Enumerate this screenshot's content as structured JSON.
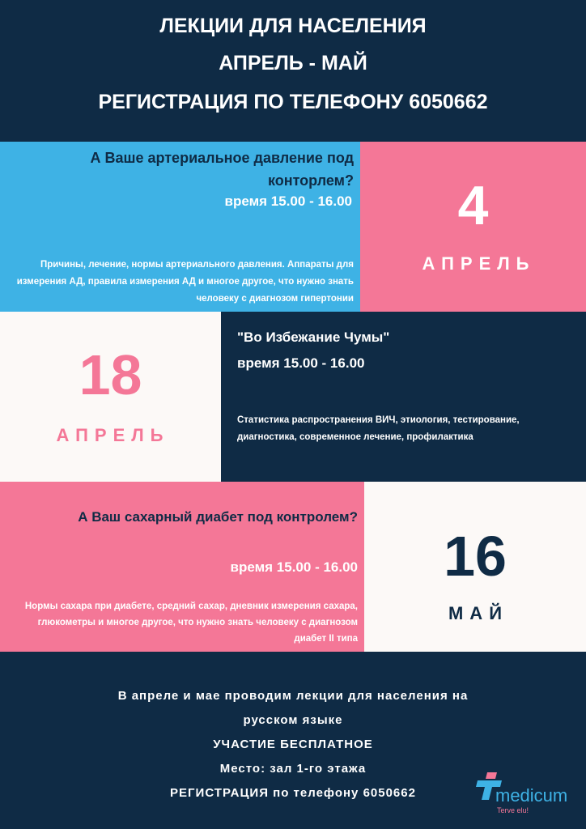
{
  "header": {
    "line1": "ЛЕКЦИИ ДЛЯ НАСЕЛЕНИЯ",
    "line2": "АПРЕЛЬ - МАЙ",
    "line3": "РЕГИСТРАЦИЯ ПО ТЕЛЕФОНУ 6050662"
  },
  "lectures": [
    {
      "title": "А Ваше артериальное давление под конторлем?",
      "time": "время 15.00 - 16.00",
      "description": "Причины, лечение, нормы артериального давления. Аппараты для измерения АД, правила измерения АД и многое другое, что нужно знать человеку с диагнозом гипертонии",
      "day": "4",
      "month": "АПРЕЛЬ"
    },
    {
      "title": "\"Во Избежание Чумы\"",
      "time": "время 15.00 - 16.00",
      "description": "Статистика распространения ВИЧ, этиология, тестирование, диагностика, современное лечение, профилактика",
      "day": "18",
      "month": "АПРЕЛЬ"
    },
    {
      "title": "А Ваш сахарный диабет под контролем?",
      "time": "время 15.00 - 16.00",
      "description": "Нормы сахара при диабете, средний сахар, дневник измерения сахара, глюкометры и многое другое, что нужно знать человеку с диагнозом диабет II типа",
      "day": "16",
      "month": "МАЙ"
    }
  ],
  "footer": {
    "line1": "В апреле и мае проводим лекции для населения на",
    "line2": "русском языке",
    "line3": "УЧАСТИЕ БЕСПЛАТНОЕ",
    "line4": "Место: зал 1-го этажа",
    "line5": "РЕГИСТРАЦИЯ по телефону 6050662"
  },
  "logo": {
    "name": "medicum",
    "slogan": "Terve elu!"
  },
  "colors": {
    "navy": "#0f2b45",
    "blue": "#3eb2e5",
    "pink": "#f47797",
    "white": "#fcf9f7"
  }
}
